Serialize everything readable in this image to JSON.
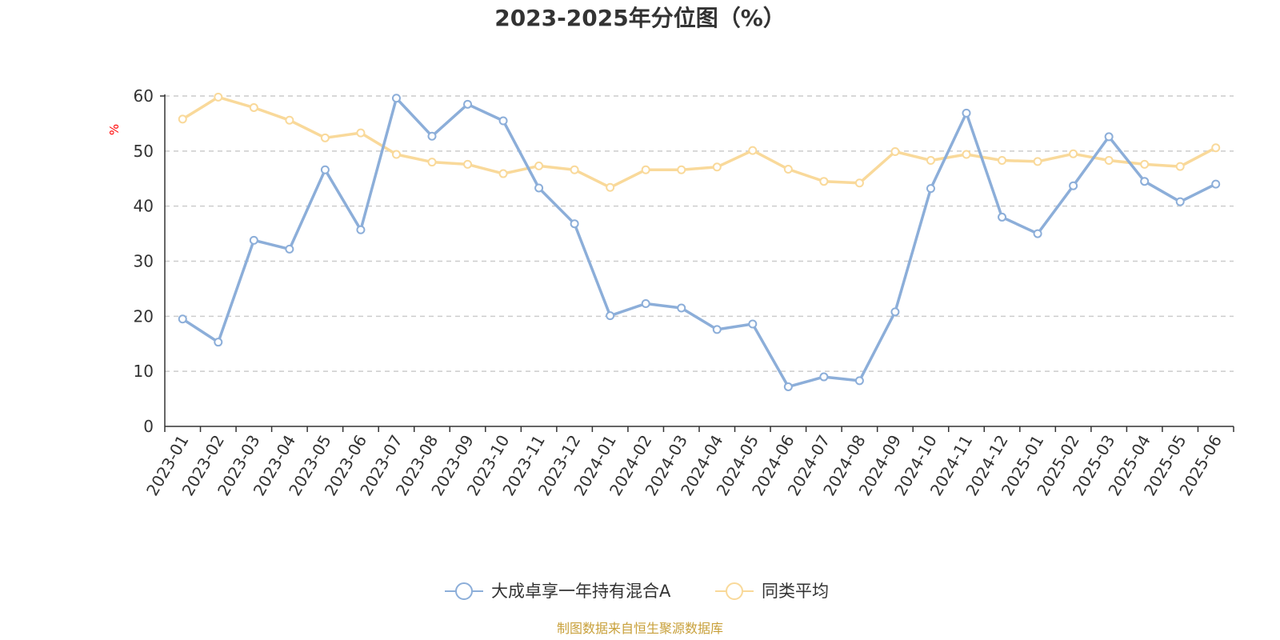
{
  "colors": {
    "series_fund": "#8caed9",
    "series_avg": "#f9d99a",
    "grid": "#cccccc",
    "axis": "#333333",
    "unit": "#ff0000",
    "source": "#c8a03a"
  },
  "chart_data": {
    "type": "line",
    "title": "2023-2025年分位图（%）",
    "ylabel": "%",
    "xlabel": "",
    "ylim": [
      0,
      60
    ],
    "yticks": [
      "0",
      "10",
      "20",
      "30",
      "40",
      "50",
      "60"
    ],
    "grid": true,
    "legend_position": "bottom-center",
    "categories": [
      "2023-01",
      "2023-02",
      "2023-03",
      "2023-04",
      "2023-05",
      "2023-06",
      "2023-07",
      "2023-08",
      "2023-09",
      "2023-10",
      "2023-11",
      "2023-12",
      "2024-01",
      "2024-02",
      "2024-03",
      "2024-04",
      "2024-05",
      "2024-06",
      "2024-07",
      "2024-08",
      "2024-09",
      "2024-10",
      "2024-11",
      "2024-12",
      "2025-01",
      "2025-02",
      "2025-03",
      "2025-04",
      "2025-05",
      "2025-06"
    ],
    "series": [
      {
        "name": "大成卓享一年持有混合A",
        "color_key": "series_fund",
        "values": [
          19.5,
          15.3,
          33.8,
          32.2,
          46.6,
          35.7,
          59.6,
          52.7,
          58.5,
          55.5,
          43.3,
          36.8,
          20.1,
          22.3,
          21.5,
          17.6,
          18.6,
          7.2,
          9.0,
          8.3,
          20.8,
          43.2,
          56.9,
          38.0,
          35.0,
          43.7,
          52.6,
          44.5,
          40.8,
          44.0
        ]
      },
      {
        "name": "同类平均",
        "color_key": "series_avg",
        "values": [
          55.8,
          59.8,
          57.9,
          55.6,
          52.4,
          53.3,
          49.4,
          48.0,
          47.6,
          45.9,
          47.3,
          46.6,
          43.4,
          46.6,
          46.6,
          47.1,
          50.1,
          46.7,
          44.5,
          44.2,
          49.9,
          48.3,
          49.4,
          48.3,
          48.1,
          49.5,
          48.3,
          47.6,
          47.2,
          50.6
        ]
      }
    ],
    "source_note": "制图数据来自恒生聚源数据库"
  }
}
